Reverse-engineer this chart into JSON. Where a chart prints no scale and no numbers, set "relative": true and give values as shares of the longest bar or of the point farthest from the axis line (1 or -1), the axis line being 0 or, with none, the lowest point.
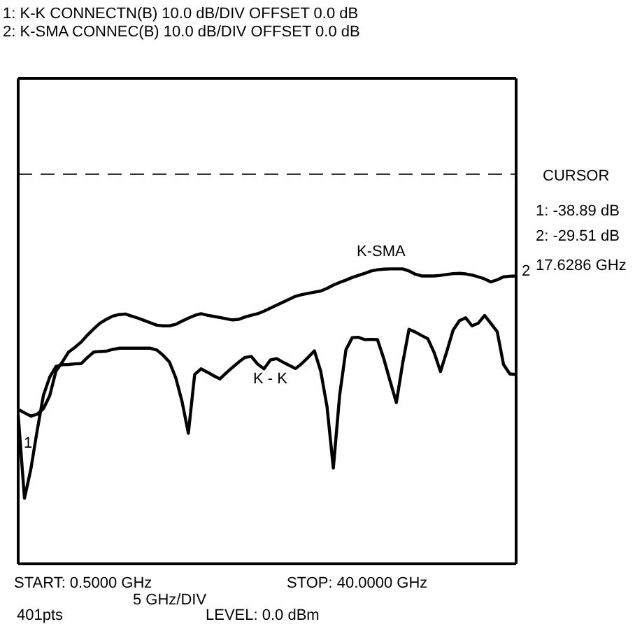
{
  "chart_data": {
    "type": "line",
    "title": "1: K-K CONNECTN(B) 10.0 dB/DIV OFFSET 0.0 dB",
    "subtitle": "2: K-SMA CONNEC(B) 10.0 dB/DIV OFFSET 0.0 dB",
    "relative": true,
    "tick_labels": false,
    "marker": "none",
    "line_style": "solid",
    "categories": [
      null,
      null,
      null,
      null,
      null,
      null,
      null,
      null,
      null,
      null,
      null,
      null,
      null,
      null,
      null,
      null,
      null,
      null,
      null,
      null,
      null,
      null,
      null,
      null,
      null,
      null,
      null,
      null,
      null,
      null,
      null,
      null,
      null,
      null,
      null,
      null,
      null,
      null,
      null,
      null,
      null,
      null,
      null,
      null,
      null,
      null,
      null,
      null,
      null,
      null,
      null,
      null,
      null,
      null,
      null,
      null,
      null,
      null,
      null,
      null,
      null,
      null,
      null,
      null,
      null,
      null,
      null,
      null,
      null,
      null,
      null,
      null,
      null,
      null,
      null,
      null,
      null,
      null,
      null,
      null
    ],
    "series": [
      {
        "name": "K - K",
        "color": "#000000",
        "values": [
          0.505,
          0.222,
          0.32,
          0.45,
          0.571,
          0.633,
          0.669,
          0.675,
          0.676,
          0.678,
          0.679,
          0.7,
          0.718,
          0.72,
          0.721,
          0.727,
          0.731,
          0.731,
          0.731,
          0.731,
          0.731,
          0.731,
          0.725,
          0.707,
          0.684,
          0.631,
          0.55,
          0.443,
          0.642,
          0.661,
          0.65,
          0.638,
          0.627,
          0.647,
          0.666,
          0.684,
          0.7,
          0.703,
          0.677,
          0.661,
          0.691,
          0.696,
          0.684,
          0.673,
          0.662,
          0.679,
          0.7,
          0.722,
          0.653,
          0.533,
          0.325,
          0.571,
          0.726,
          0.767,
          0.768,
          0.76,
          0.761,
          0.76,
          0.696,
          0.62,
          0.547,
          0.68,
          0.795,
          0.786,
          0.774,
          0.763,
          0.716,
          0.652,
          0.72,
          0.792,
          0.824,
          0.834,
          0.807,
          0.816,
          0.842,
          0.815,
          0.787,
          0.676,
          0.644,
          0.642
        ]
      },
      {
        "name": "K-SMA",
        "color": "#000000",
        "values": [
          0.524,
          0.512,
          0.501,
          0.507,
          0.526,
          0.57,
          0.654,
          0.684,
          0.718,
          0.734,
          0.752,
          0.776,
          0.797,
          0.816,
          0.829,
          0.84,
          0.845,
          0.847,
          0.84,
          0.833,
          0.825,
          0.817,
          0.809,
          0.807,
          0.807,
          0.812,
          0.823,
          0.833,
          0.842,
          0.848,
          0.843,
          0.839,
          0.835,
          0.831,
          0.827,
          0.829,
          0.837,
          0.843,
          0.848,
          0.857,
          0.867,
          0.877,
          0.887,
          0.897,
          0.907,
          0.913,
          0.917,
          0.921,
          0.925,
          0.934,
          0.945,
          0.954,
          0.962,
          0.971,
          0.978,
          0.985,
          0.993,
          0.997,
          0.999,
          1.0,
          1.0,
          1.0,
          0.993,
          0.982,
          0.976,
          0.976,
          0.976,
          0.978,
          0.981,
          0.984,
          0.985,
          0.983,
          0.979,
          0.973,
          0.966,
          0.956,
          0.963,
          0.973,
          0.975,
          0.976
        ]
      }
    ],
    "ref_lines": [
      {
        "axis": "y",
        "value": 1.321,
        "color": "#333333",
        "line_style": "dashed"
      }
    ],
    "annotations": [
      "1",
      "2",
      "CURSOR",
      "1: -38.89 dB",
      "2: -29.51 dB",
      "17.6286 GHz",
      "START: 0.5000 GHz",
      "STOP: 40.0000 GHz",
      "5 GHz/DIV",
      "401pts",
      "LEVEL: 0.0 dBm"
    ]
  }
}
